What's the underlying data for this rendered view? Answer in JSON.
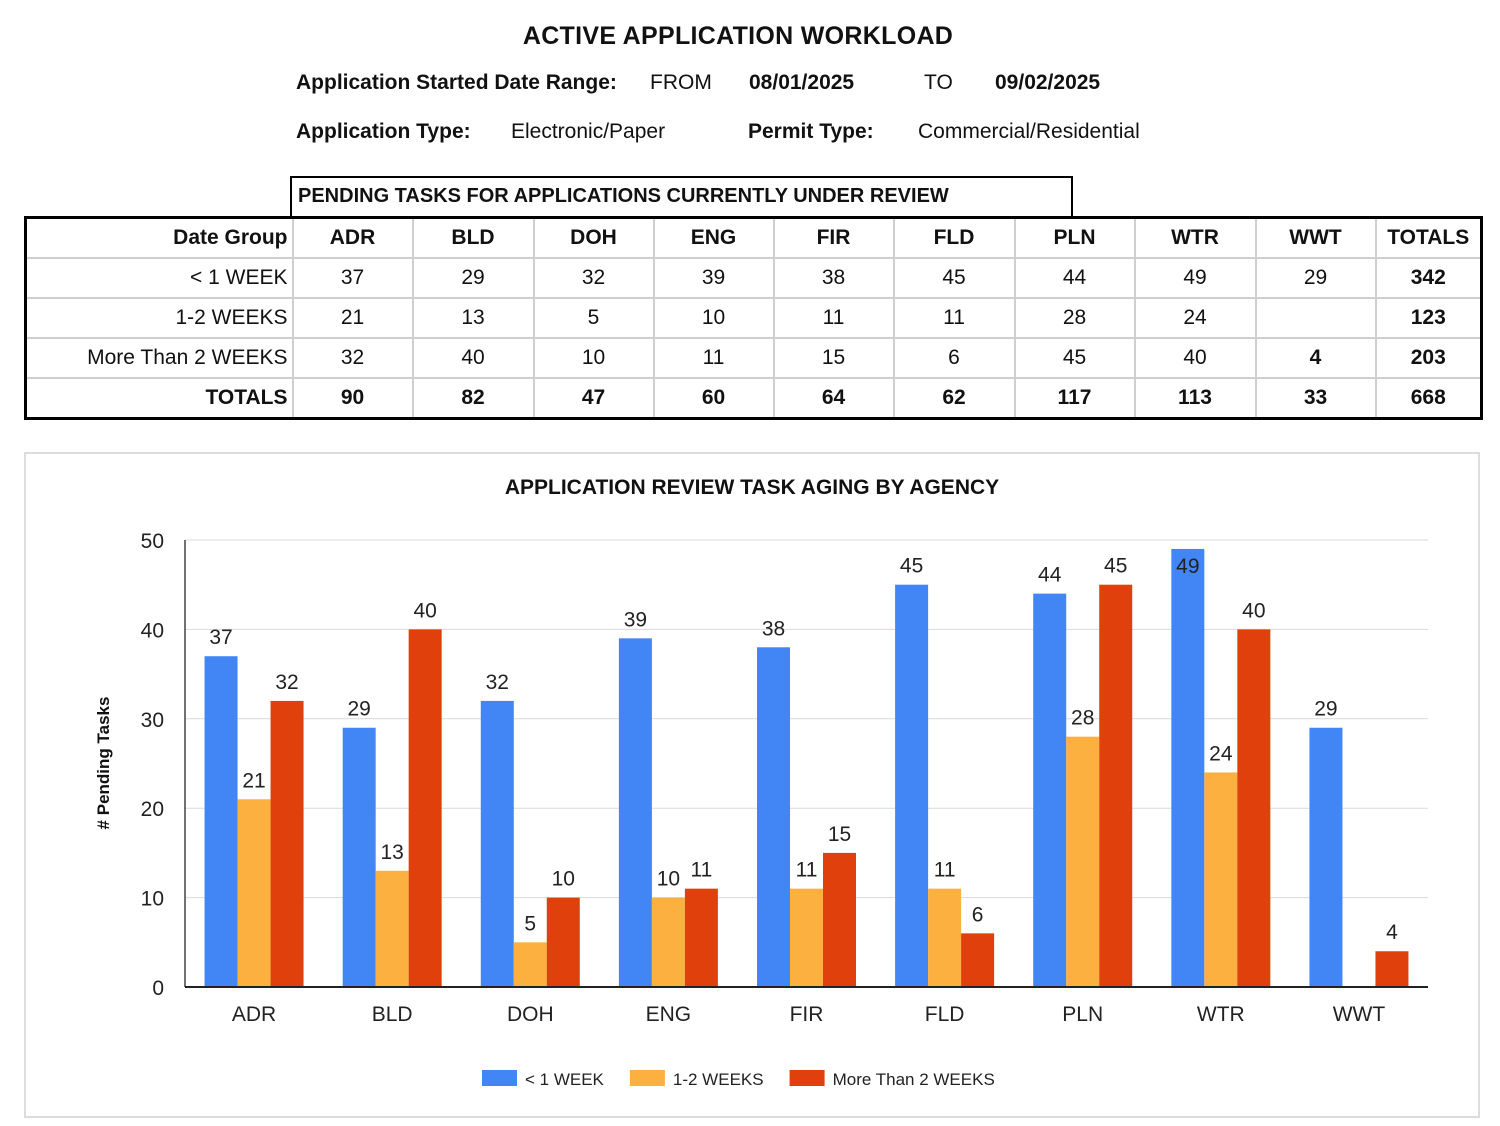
{
  "report": {
    "title": "ACTIVE APPLICATION WORKLOAD",
    "date_range_label": "Application Started Date Range",
    "date_range_colon": ":",
    "from_label": "FROM",
    "from_date": "08/01/2025",
    "to_label": "TO",
    "to_date": "09/02/2025",
    "app_type_label": "Application Type:",
    "app_type_value": "Electronic/Paper",
    "permit_type_label": "Permit Type:",
    "permit_type_value": "Commercial/Residential"
  },
  "table": {
    "caption": "PENDING TASKS FOR APPLICATIONS CURRENTLY UNDER REVIEW",
    "headers": [
      "Date Group",
      "ADR",
      "BLD",
      "DOH",
      "ENG",
      "FIR",
      "FLD",
      "PLN",
      "WTR",
      "WWT",
      "TOTALS"
    ],
    "rows": [
      [
        "< 1 WEEK",
        "37",
        "29",
        "32",
        "39",
        "38",
        "45",
        "44",
        "49",
        "29",
        "342"
      ],
      [
        "1-2 WEEKS",
        "21",
        "13",
        "5",
        "10",
        "11",
        "11",
        "28",
        "24",
        "",
        "123"
      ],
      [
        "More Than 2 WEEKS",
        "32",
        "40",
        "10",
        "11",
        "15",
        "6",
        "45",
        "40",
        "4",
        "203"
      ],
      [
        "TOTALS",
        "90",
        "82",
        "47",
        "60",
        "64",
        "62",
        "117",
        "113",
        "33",
        "668"
      ]
    ]
  },
  "chart_data": {
    "type": "bar",
    "title": "APPLICATION REVIEW TASK AGING BY AGENCY",
    "ylabel": "# Pending Tasks",
    "xlabel": "",
    "ylim": [
      0,
      50
    ],
    "yticks": [
      0,
      10,
      20,
      30,
      40,
      50
    ],
    "grid": true,
    "legend_position": "bottom",
    "categories": [
      "ADR",
      "BLD",
      "DOH",
      "ENG",
      "FIR",
      "FLD",
      "PLN",
      "WTR",
      "WWT"
    ],
    "series": [
      {
        "name": "< 1 WEEK",
        "color": "#4285f4",
        "values": [
          37,
          29,
          32,
          39,
          38,
          45,
          44,
          49,
          29
        ]
      },
      {
        "name": "1-2 WEEKS",
        "color": "#fbb040",
        "values": [
          21,
          13,
          5,
          10,
          11,
          11,
          28,
          24,
          null
        ]
      },
      {
        "name": "More Than 2 WEEKS",
        "color": "#e0400b",
        "values": [
          32,
          40,
          10,
          11,
          15,
          6,
          45,
          40,
          4
        ]
      }
    ]
  }
}
